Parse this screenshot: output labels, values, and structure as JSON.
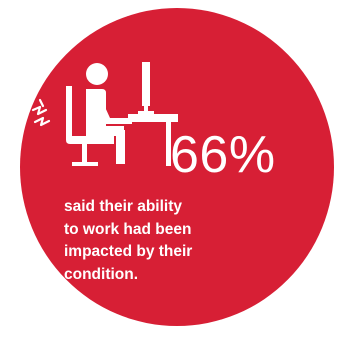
{
  "colors": {
    "circle": "#d71f35",
    "foreground": "#ffffff"
  },
  "icon": "office-worker-back-pain-icon",
  "stat": {
    "value": "66%",
    "caption_lines": [
      "said their ability",
      "to work had been",
      "impacted by their",
      "condition."
    ]
  }
}
